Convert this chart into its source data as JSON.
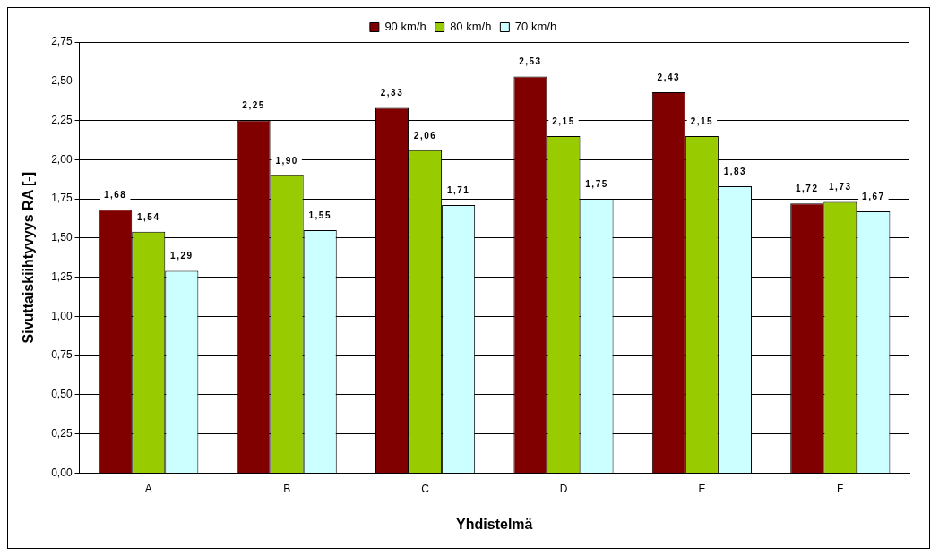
{
  "chart_data": {
    "type": "bar",
    "xlabel": "Yhdistelmä",
    "ylabel": "Sivuttaiskiihtyvyys RA [-]",
    "categories": [
      "A",
      "B",
      "C",
      "D",
      "E",
      "F"
    ],
    "series": [
      {
        "name": "90 km/h",
        "color": "#800000",
        "values": [
          1.68,
          2.25,
          2.33,
          2.53,
          2.43,
          1.72
        ],
        "value_labels": [
          "1,68",
          "2,25",
          "2,33",
          "2,53",
          "2,43",
          "1,72"
        ]
      },
      {
        "name": "80 km/h",
        "color": "#99cc00",
        "values": [
          1.54,
          1.9,
          2.06,
          2.15,
          2.15,
          1.73
        ],
        "value_labels": [
          "1,54",
          "1,90",
          "2,06",
          "2,15",
          "2,15",
          "1,73"
        ]
      },
      {
        "name": "70 km/h",
        "color": "#ccffff",
        "values": [
          1.29,
          1.55,
          1.71,
          1.75,
          1.83,
          1.67
        ],
        "value_labels": [
          "1,29",
          "1,55",
          "1,71",
          "1,75",
          "1,83",
          "1,67"
        ]
      }
    ],
    "ylim": [
      0,
      2.75
    ],
    "yticks": [
      {
        "value": 0,
        "label": "0,00"
      },
      {
        "value": 0.25,
        "label": "0,25"
      },
      {
        "value": 0.5,
        "label": "0,50"
      },
      {
        "value": 0.75,
        "label": "0,75"
      },
      {
        "value": 1,
        "label": "1,00"
      },
      {
        "value": 1.25,
        "label": "1,25"
      },
      {
        "value": 1.5,
        "label": "1,50"
      },
      {
        "value": 1.75,
        "label": "1,75"
      },
      {
        "value": 2,
        "label": "2,00"
      },
      {
        "value": 2.25,
        "label": "2,25"
      },
      {
        "value": 2.5,
        "label": "2,50"
      },
      {
        "value": 2.75,
        "label": "2,75"
      }
    ],
    "grid": "y",
    "legend": "top"
  }
}
